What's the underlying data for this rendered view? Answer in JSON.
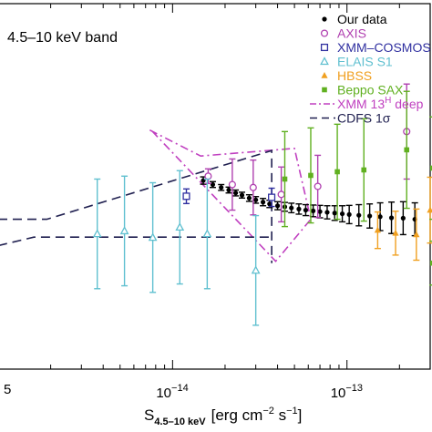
{
  "chart_data": {
    "type": "scatter",
    "band_label": "4.5–10 keV band",
    "xlabel": {
      "main": "S",
      "subscript": "4.5–10 keV",
      "units_prefix": "[erg cm",
      "exp1": "−2",
      "units_mid": " s",
      "exp2": "−1",
      "units_suffix": "]"
    },
    "xscale": "log",
    "xlim": [
      1e-15,
      3e-13
    ],
    "x_ticks": [
      {
        "value": 1e-15,
        "mantissa": "",
        "exponent": "",
        "label": "5"
      },
      {
        "value": 1e-14,
        "mantissa": "10",
        "exponent": "−14",
        "label": ""
      },
      {
        "value": 1e-13,
        "mantissa": "10",
        "exponent": "−13",
        "label": ""
      }
    ],
    "ylim": [
      0,
      1
    ],
    "legend_position": "top-right",
    "legend": [
      {
        "label": "Our data",
        "color": "#000000",
        "marker": "dot"
      },
      {
        "label": "AXIS",
        "color": "#b040b0",
        "marker": "circle"
      },
      {
        "label": "XMM–COSMOS",
        "color": "#3030a0",
        "marker": "square"
      },
      {
        "label": "ELAIS S1",
        "color": "#60c0d0",
        "marker": "triangle-open"
      },
      {
        "label": "HBSS",
        "color": "#f0a020",
        "marker": "triangle-filled"
      },
      {
        "label": "Beppo SAX",
        "color": "#60b020",
        "marker": "square-filled"
      },
      {
        "label": "XMM 13H deep",
        "label_main": "XMM 13",
        "label_sup": "H",
        "label_tail": " deep",
        "color": "#c040c0",
        "marker": "dashdot"
      },
      {
        "label": "CDFS 1σ",
        "color": "#202050",
        "marker": "dashed"
      }
    ],
    "series": [
      {
        "name": "Our data",
        "color": "#000000",
        "marker": "dot",
        "points": [
          {
            "x": 1.5e-14,
            "y": 0.516,
            "err": 0.01
          },
          {
            "x": 1.7e-14,
            "y": 0.505,
            "err": 0.008
          },
          {
            "x": 1.9e-14,
            "y": 0.497,
            "err": 0.008
          },
          {
            "x": 2.1e-14,
            "y": 0.49,
            "err": 0.008
          },
          {
            "x": 2.3e-14,
            "y": 0.482,
            "err": 0.008
          },
          {
            "x": 2.5e-14,
            "y": 0.476,
            "err": 0.008
          },
          {
            "x": 2.75e-14,
            "y": 0.468,
            "err": 0.009
          },
          {
            "x": 3e-14,
            "y": 0.463,
            "err": 0.009
          },
          {
            "x": 3.3e-14,
            "y": 0.457,
            "err": 0.01
          },
          {
            "x": 3.6e-14,
            "y": 0.452,
            "err": 0.01
          },
          {
            "x": 4e-14,
            "y": 0.447,
            "err": 0.011
          },
          {
            "x": 4.4e-14,
            "y": 0.444,
            "err": 0.012
          },
          {
            "x": 4.8e-14,
            "y": 0.441,
            "err": 0.013
          },
          {
            "x": 5.3e-14,
            "y": 0.438,
            "err": 0.014
          },
          {
            "x": 5.8e-14,
            "y": 0.435,
            "err": 0.015
          },
          {
            "x": 6.4e-14,
            "y": 0.433,
            "err": 0.016
          },
          {
            "x": 7e-14,
            "y": 0.431,
            "err": 0.017
          },
          {
            "x": 7.7e-14,
            "y": 0.429,
            "err": 0.018
          },
          {
            "x": 8.5e-14,
            "y": 0.427,
            "err": 0.02
          },
          {
            "x": 9.4e-14,
            "y": 0.425,
            "err": 0.022
          },
          {
            "x": 1.03e-13,
            "y": 0.423,
            "err": 0.025
          },
          {
            "x": 1.17e-13,
            "y": 0.421,
            "err": 0.029
          },
          {
            "x": 1.35e-13,
            "y": 0.419,
            "err": 0.033
          },
          {
            "x": 1.55e-13,
            "y": 0.417,
            "err": 0.038
          },
          {
            "x": 1.8e-13,
            "y": 0.414,
            "err": 0.043
          },
          {
            "x": 2.1e-13,
            "y": 0.413,
            "err": 0.045
          },
          {
            "x": 2.45e-13,
            "y": 0.41,
            "err": 0.045
          }
        ]
      },
      {
        "name": "AXIS",
        "color": "#b040b0",
        "marker": "circle",
        "points": [
          {
            "x": 1.6e-14,
            "y": 0.528,
            "err": 0.02
          },
          {
            "x": 2.2e-14,
            "y": 0.505,
            "err": 0.07
          },
          {
            "x": 2.9e-14,
            "y": 0.497,
            "err": 0.075
          },
          {
            "x": 4.2e-14,
            "y": 0.478,
            "err": 0.075
          },
          {
            "x": 6.8e-14,
            "y": 0.5,
            "err": 0.085
          },
          {
            "x": 2.2e-13,
            "y": 0.65,
            "err": 0.13
          }
        ]
      },
      {
        "name": "XMM–COSMOS",
        "color": "#3030a0",
        "marker": "square",
        "points": [
          {
            "x": 1.2e-14,
            "y": 0.473,
            "err": 0.02
          },
          {
            "x": 3.7e-14,
            "y": 0.47,
            "err": 0.025
          }
        ]
      },
      {
        "name": "ELAIS S1",
        "color": "#60c0d0",
        "marker": "triangle-open",
        "points": [
          {
            "x": 3.7e-15,
            "y": 0.37,
            "err": 0.15
          },
          {
            "x": 5.3e-15,
            "y": 0.378,
            "err": 0.15
          },
          {
            "x": 7.7e-15,
            "y": 0.36,
            "err": 0.15
          },
          {
            "x": 1.1e-14,
            "y": 0.388,
            "err": 0.155
          },
          {
            "x": 1.58e-14,
            "y": 0.37,
            "err": 0.15
          },
          {
            "x": 3e-14,
            "y": 0.27,
            "err": 0.15
          }
        ]
      },
      {
        "name": "HBSS",
        "color": "#f0a020",
        "marker": "triangle-filled",
        "points": [
          {
            "x": 1.5e-13,
            "y": 0.38,
            "err": 0.05
          },
          {
            "x": 1.9e-13,
            "y": 0.372,
            "err": 0.06
          },
          {
            "x": 2.5e-13,
            "y": 0.368,
            "err": 0.07
          },
          {
            "x": 3e-13,
            "y": 0.435,
            "err": 0.09
          }
        ]
      },
      {
        "name": "Beppo SAX",
        "color": "#60b020",
        "marker": "square-filled",
        "points": [
          {
            "x": 4.4e-14,
            "y": 0.52,
            "err": 0.13
          },
          {
            "x": 6.2e-14,
            "y": 0.53,
            "err": 0.13
          },
          {
            "x": 8.8e-14,
            "y": 0.54,
            "err": 0.13
          },
          {
            "x": 1.25e-13,
            "y": 0.545,
            "err": 0.14
          },
          {
            "x": 2.2e-13,
            "y": 0.6,
            "err": 0.16
          },
          {
            "x": 3.1e-13,
            "y": 0.55,
            "err": 0.14
          },
          {
            "x": 3.1e-13,
            "y": 0.29,
            "err": 0.06
          }
        ]
      }
    ],
    "curves": [
      {
        "name": "XMM 13H deep",
        "color": "#c040c0",
        "style": "dashdot",
        "points": [
          {
            "x": 7.4e-15,
            "y": 0.654
          },
          {
            "x": 1.45e-14,
            "y": 0.583
          },
          {
            "x": 5e-14,
            "y": 0.604
          },
          {
            "x": 6.2e-14,
            "y": 0.41
          },
          {
            "x": 3.9e-14,
            "y": 0.295
          },
          {
            "x": 7.5e-15,
            "y": 0.655
          }
        ]
      },
      {
        "name": "CDFS 1σ upper",
        "color": "#202050",
        "style": "dashed",
        "points": [
          {
            "x": 1e-15,
            "y": 0.41
          },
          {
            "x": 1.9e-15,
            "y": 0.41
          },
          {
            "x": 3.7e-14,
            "y": 0.598
          },
          {
            "x": 3.7e-14,
            "y": 0.29
          }
        ]
      },
      {
        "name": "CDFS 1σ lower",
        "color": "#202050",
        "style": "dashed",
        "points": [
          {
            "x": 1e-15,
            "y": 0.338
          },
          {
            "x": 1.6e-15,
            "y": 0.361
          },
          {
            "x": 2.1e-15,
            "y": 0.361
          },
          {
            "x": 3.7e-14,
            "y": 0.361
          }
        ]
      }
    ]
  }
}
